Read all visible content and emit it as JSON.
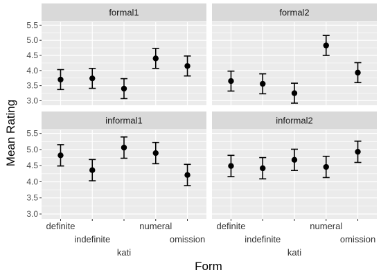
{
  "chart_data": {
    "type": "scatter",
    "title": "",
    "xlabel": "Form",
    "ylabel": "Mean Rating",
    "categories": [
      "definite",
      "indefinite",
      "kati",
      "numeral",
      "omission"
    ],
    "ylim": [
      2.85,
      5.6
    ],
    "yticks": [
      "3.0",
      "3.5",
      "4.0",
      "4.5",
      "5.0",
      "5.5"
    ],
    "grid": true,
    "legend": "none",
    "colors": {
      "panel_bg": "#ebebeb",
      "strip_bg": "#d9d9d9",
      "grid": "#ffffff",
      "point": "#000000"
    },
    "panels": [
      {
        "name": "formal1",
        "means": [
          3.7,
          3.74,
          3.4,
          4.4,
          4.15
        ],
        "lower": [
          3.37,
          3.41,
          3.07,
          4.07,
          3.82
        ],
        "upper": [
          4.03,
          4.07,
          3.73,
          4.73,
          4.48
        ]
      },
      {
        "name": "formal2",
        "means": [
          3.65,
          3.56,
          3.25,
          4.83,
          3.93
        ],
        "lower": [
          3.32,
          3.23,
          2.92,
          4.5,
          3.6
        ],
        "upper": [
          3.98,
          3.89,
          3.58,
          5.16,
          4.26
        ]
      },
      {
        "name": "informal1",
        "means": [
          4.82,
          4.36,
          5.06,
          4.89,
          4.21
        ],
        "lower": [
          4.49,
          4.03,
          4.73,
          4.56,
          3.88
        ],
        "upper": [
          5.15,
          4.69,
          5.39,
          5.22,
          4.54
        ]
      },
      {
        "name": "informal2",
        "means": [
          4.49,
          4.42,
          4.68,
          4.46,
          4.93
        ],
        "lower": [
          4.16,
          4.09,
          4.35,
          4.13,
          4.6
        ],
        "upper": [
          4.82,
          4.75,
          5.01,
          4.79,
          5.26
        ]
      }
    ]
  }
}
